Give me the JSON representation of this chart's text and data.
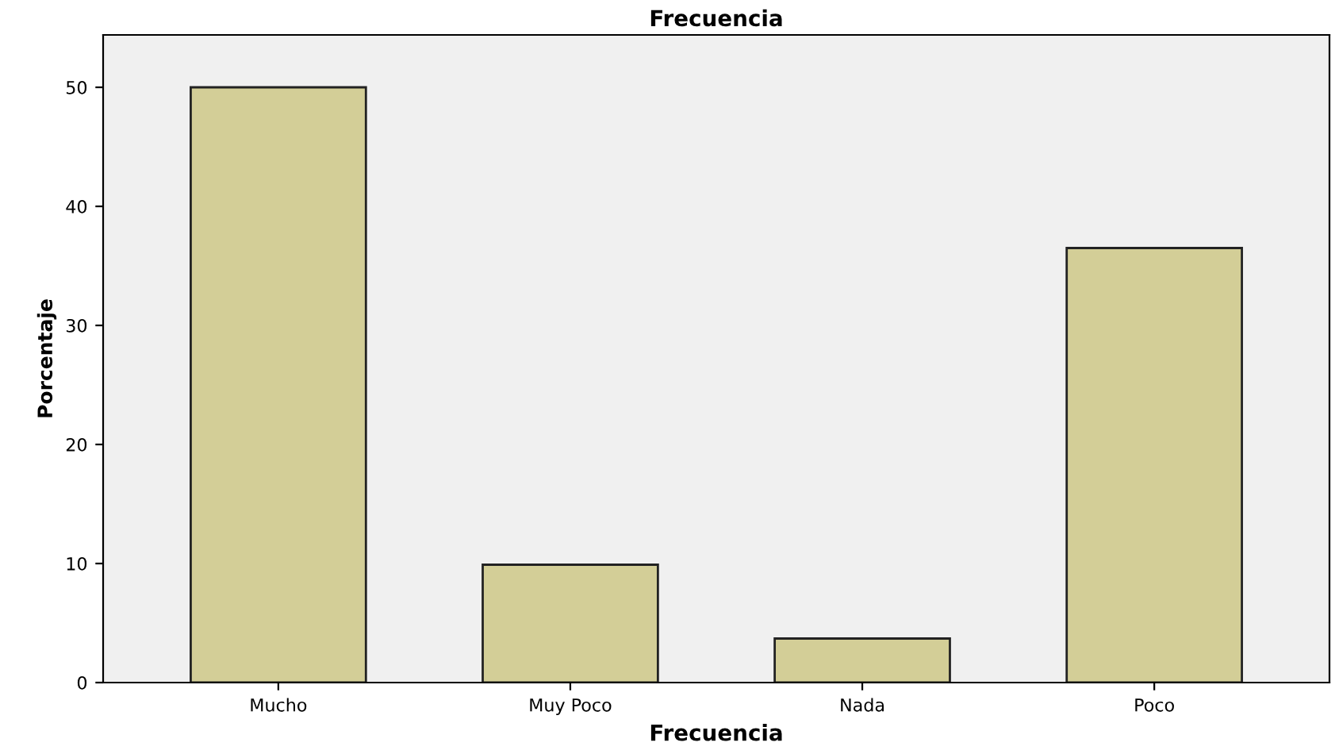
{
  "chart_data": {
    "type": "bar",
    "title": "Frecuencia",
    "xlabel": "Frecuencia",
    "ylabel": "Porcentaje",
    "categories": [
      "Mucho",
      "Muy Poco",
      "Nada",
      "Poco"
    ],
    "values": [
      50.0,
      9.9,
      3.7,
      36.5
    ],
    "color": "#d3ce97",
    "ylim": [
      0,
      54.4
    ],
    "yticks": [
      0,
      10,
      20,
      30,
      40,
      50
    ],
    "grid": false
  }
}
